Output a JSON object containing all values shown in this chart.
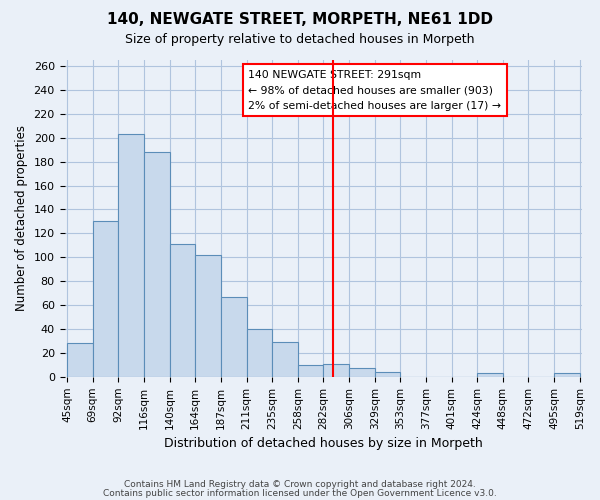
{
  "title": "140, NEWGATE STREET, MORPETH, NE61 1DD",
  "subtitle": "Size of property relative to detached houses in Morpeth",
  "xlabel": "Distribution of detached houses by size in Morpeth",
  "ylabel": "Number of detached properties",
  "bin_labels": [
    "45sqm",
    "69sqm",
    "92sqm",
    "116sqm",
    "140sqm",
    "164sqm",
    "187sqm",
    "211sqm",
    "235sqm",
    "258sqm",
    "282sqm",
    "306sqm",
    "329sqm",
    "353sqm",
    "377sqm",
    "401sqm",
    "424sqm",
    "448sqm",
    "472sqm",
    "495sqm",
    "519sqm"
  ],
  "bar_heights": [
    28,
    130,
    203,
    188,
    111,
    102,
    67,
    40,
    29,
    10,
    11,
    7,
    4,
    0,
    0,
    0,
    3,
    0,
    0,
    3
  ],
  "bar_color": "#c8d9ec",
  "bar_edge_color": "#5b8db8",
  "vline_color": "red",
  "annotation_text": "140 NEWGATE STREET: 291sqm\n← 98% of detached houses are smaller (903)\n2% of semi-detached houses are larger (17) →",
  "ylim": [
    0,
    265
  ],
  "yticks": [
    0,
    20,
    40,
    60,
    80,
    100,
    120,
    140,
    160,
    180,
    200,
    220,
    240,
    260
  ],
  "grid_color": "#b0c4de",
  "background_color": "#eaf0f8",
  "footer1": "Contains HM Land Registry data © Crown copyright and database right 2024.",
  "footer2": "Contains public sector information licensed under the Open Government Licence v3.0."
}
